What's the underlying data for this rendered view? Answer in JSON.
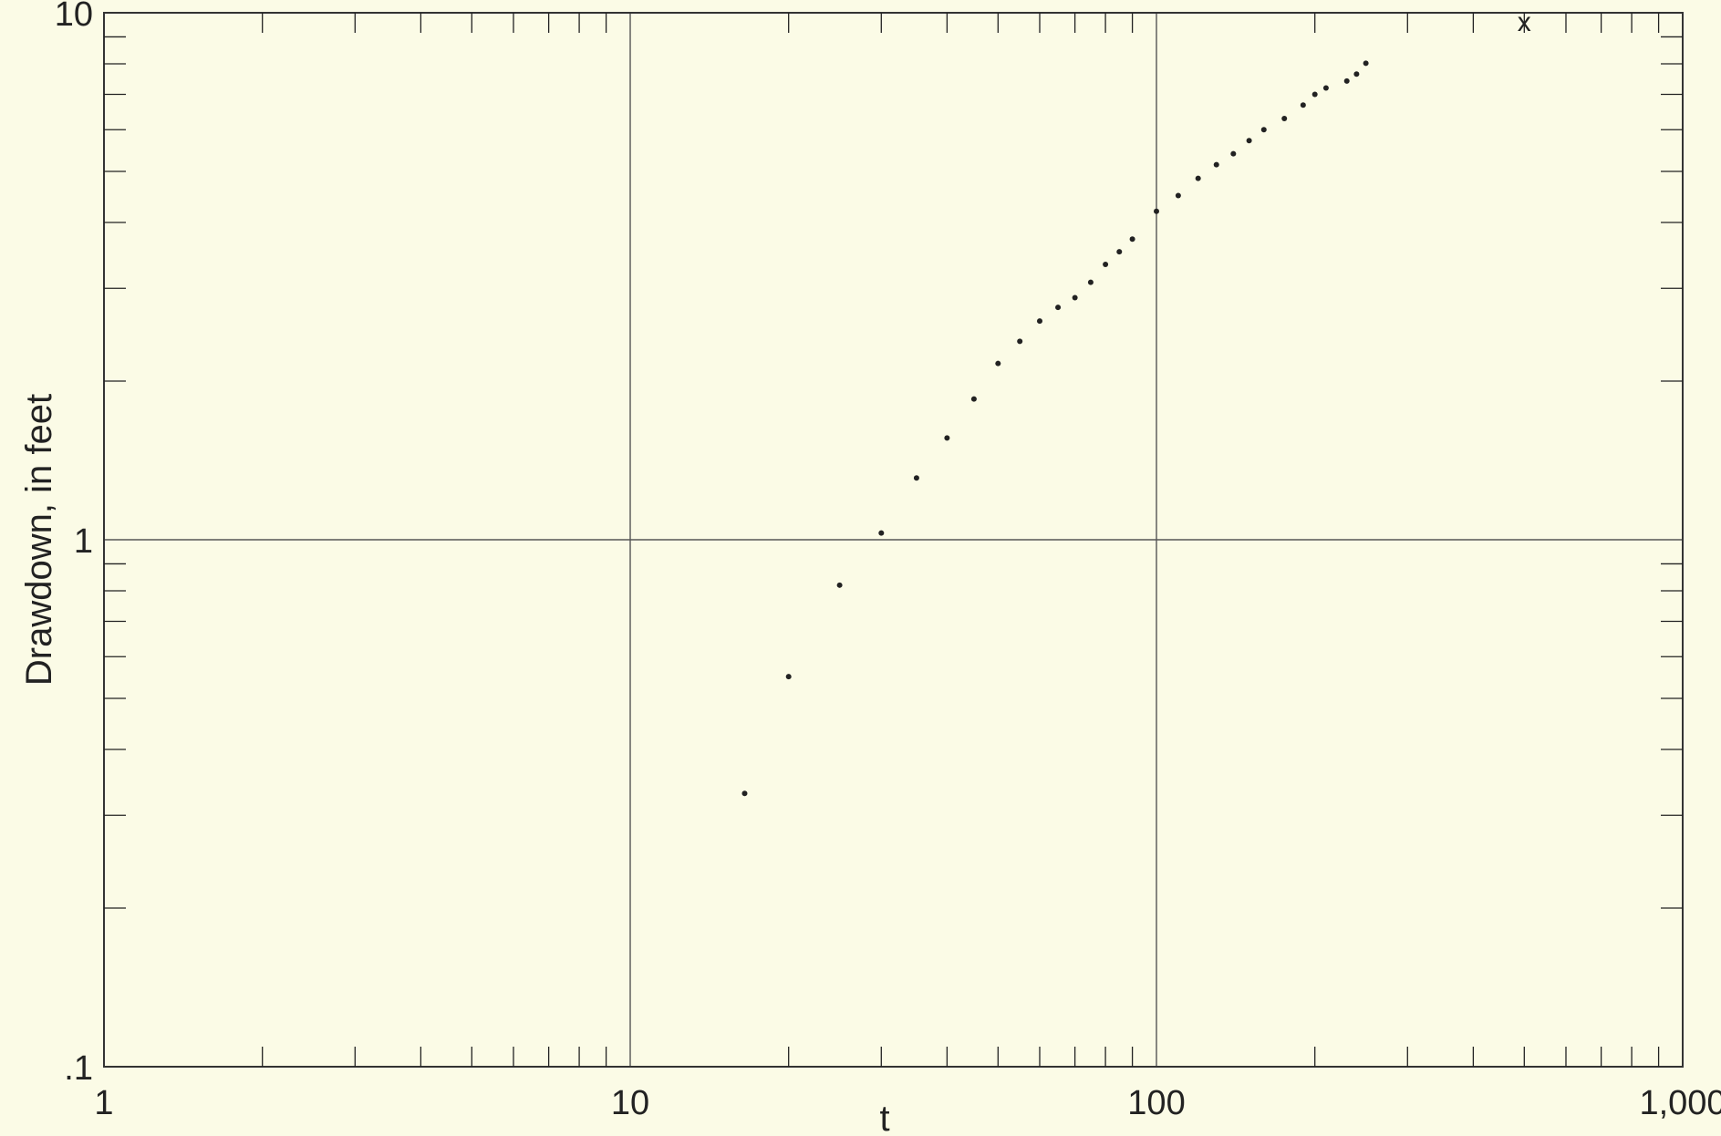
{
  "chart_data": {
    "type": "scatter",
    "title": "",
    "xlabel": "t",
    "ylabel": "Drawdown, in feet",
    "x_scale": "log",
    "y_scale": "log",
    "xlim": [
      1,
      1000
    ],
    "ylim": [
      0.1,
      10
    ],
    "x_tick_labels": [
      {
        "value": 1,
        "label": "1"
      },
      {
        "value": 10,
        "label": "10"
      },
      {
        "value": 100,
        "label": "100"
      },
      {
        "value": 1000,
        "label": "1,000"
      }
    ],
    "y_tick_labels": [
      {
        "value": 0.1,
        "label": ".1"
      },
      {
        "value": 1,
        "label": "1"
      },
      {
        "value": 10,
        "label": "10"
      }
    ],
    "grid": "major decades only",
    "colors": {
      "background": "#fbfbe6",
      "ink": "#222222"
    },
    "annotations": [
      {
        "text": "x",
        "x": 500,
        "y": 9.6
      }
    ],
    "series": [
      {
        "points": [
          {
            "x": 16.5,
            "y": 0.33
          },
          {
            "x": 20,
            "y": 0.55
          },
          {
            "x": 25,
            "y": 0.82
          },
          {
            "x": 30,
            "y": 1.03
          },
          {
            "x": 35,
            "y": 1.31
          },
          {
            "x": 40,
            "y": 1.56
          },
          {
            "x": 45,
            "y": 1.85
          },
          {
            "x": 50,
            "y": 2.16
          },
          {
            "x": 55,
            "y": 2.38
          },
          {
            "x": 60,
            "y": 2.6
          },
          {
            "x": 65,
            "y": 2.76
          },
          {
            "x": 70,
            "y": 2.88
          },
          {
            "x": 75,
            "y": 3.08
          },
          {
            "x": 80,
            "y": 3.33
          },
          {
            "x": 85,
            "y": 3.52
          },
          {
            "x": 90,
            "y": 3.72
          },
          {
            "x": 100,
            "y": 4.2
          },
          {
            "x": 110,
            "y": 4.5
          },
          {
            "x": 120,
            "y": 4.85
          },
          {
            "x": 130,
            "y": 5.15
          },
          {
            "x": 140,
            "y": 5.4
          },
          {
            "x": 150,
            "y": 5.72
          },
          {
            "x": 160,
            "y": 6.0
          },
          {
            "x": 175,
            "y": 6.3
          },
          {
            "x": 190,
            "y": 6.68
          },
          {
            "x": 200,
            "y": 7.0
          },
          {
            "x": 210,
            "y": 7.2
          },
          {
            "x": 230,
            "y": 7.42
          },
          {
            "x": 240,
            "y": 7.65
          },
          {
            "x": 250,
            "y": 8.02
          }
        ]
      }
    ]
  }
}
